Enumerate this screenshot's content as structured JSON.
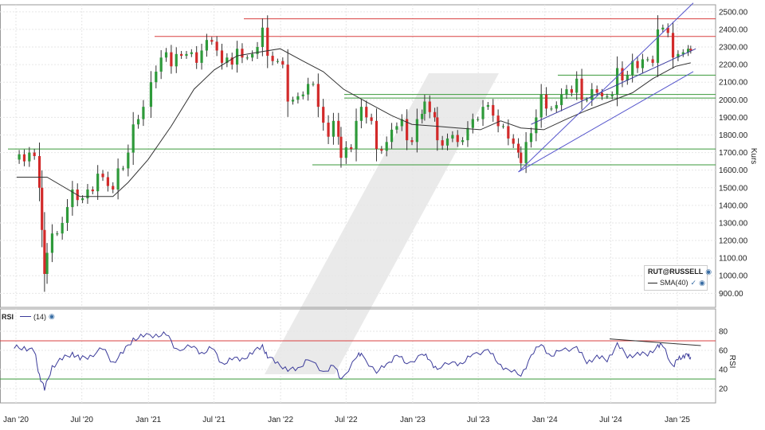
{
  "chart_data": [
    {
      "type": "candlestick",
      "title": "",
      "ylabel": "Kurs",
      "ylim": [
        820,
        2540
      ],
      "grid": true,
      "x_ticks": [
        "Jan '20",
        "Jul '20",
        "Jan '21",
        "Jul '21",
        "Jan '22",
        "Jul '22",
        "Jan '23",
        "Jul '23",
        "Jan '24",
        "Jul '24",
        "Jan '25"
      ],
      "y_ticks": [
        "900.00",
        "1000.00",
        "1100.00",
        "1200.00",
        "1300.00",
        "1400.00",
        "1500.00",
        "1600.00",
        "1700.00",
        "1800.00",
        "1900.00",
        "2000.00",
        "2100.00",
        "2200.00",
        "2300.00",
        "2400.00",
        "2500.00"
      ],
      "legend": {
        "symbol": "RUT@RUSSELL",
        "sma_label": "SMA(40)"
      },
      "close_series": [
        [
          "2019-12-27",
          1660
        ],
        [
          "2020-01-10",
          1690
        ],
        [
          "2020-01-24",
          1650
        ],
        [
          "2020-02-07",
          1700
        ],
        [
          "2020-02-21",
          1680
        ],
        [
          "2020-03-06",
          1500
        ],
        [
          "2020-03-13",
          1260
        ],
        [
          "2020-03-20",
          1010
        ],
        [
          "2020-03-27",
          1130
        ],
        [
          "2020-04-10",
          1240
        ],
        [
          "2020-04-24",
          1240
        ],
        [
          "2020-05-08",
          1300
        ],
        [
          "2020-05-22",
          1390
        ],
        [
          "2020-06-05",
          1490
        ],
        [
          "2020-06-19",
          1430
        ],
        [
          "2020-07-03",
          1440
        ],
        [
          "2020-07-17",
          1490
        ],
        [
          "2020-07-31",
          1480
        ],
        [
          "2020-08-14",
          1580
        ],
        [
          "2020-08-28",
          1560
        ],
        [
          "2020-09-11",
          1510
        ],
        [
          "2020-09-25",
          1490
        ],
        [
          "2020-10-09",
          1610
        ],
        [
          "2020-10-23",
          1610
        ],
        [
          "2020-11-06",
          1700
        ],
        [
          "2020-11-20",
          1860
        ],
        [
          "2020-12-04",
          1890
        ],
        [
          "2020-12-18",
          1960
        ],
        [
          "2021-01-08",
          2100
        ],
        [
          "2021-01-22",
          2160
        ],
        [
          "2021-02-05",
          2240
        ],
        [
          "2021-02-19",
          2270
        ],
        [
          "2021-03-05",
          2190
        ],
        [
          "2021-03-19",
          2260
        ],
        [
          "2021-04-02",
          2250
        ],
        [
          "2021-04-16",
          2260
        ],
        [
          "2021-04-30",
          2270
        ],
        [
          "2021-05-14",
          2210
        ],
        [
          "2021-05-28",
          2280
        ],
        [
          "2021-06-11",
          2340
        ],
        [
          "2021-06-25",
          2330
        ],
        [
          "2021-07-09",
          2280
        ],
        [
          "2021-07-23",
          2210
        ],
        [
          "2021-08-06",
          2240
        ],
        [
          "2021-08-20",
          2200
        ],
        [
          "2021-09-03",
          2290
        ],
        [
          "2021-09-17",
          2240
        ],
        [
          "2021-10-01",
          2240
        ],
        [
          "2021-10-15",
          2260
        ],
        [
          "2021-10-29",
          2300
        ],
        [
          "2021-11-12",
          2410
        ],
        [
          "2021-11-26",
          2250
        ],
        [
          "2021-12-10",
          2220
        ],
        [
          "2021-12-24",
          2220
        ],
        [
          "2022-01-07",
          2200
        ],
        [
          "2022-01-21",
          1990
        ],
        [
          "2022-02-04",
          2000
        ],
        [
          "2022-02-18",
          2020
        ],
        [
          "2022-03-04",
          2030
        ],
        [
          "2022-03-18",
          2090
        ],
        [
          "2022-04-01",
          2090
        ],
        [
          "2022-04-15",
          1960
        ],
        [
          "2022-04-29",
          1870
        ],
        [
          "2022-05-13",
          1790
        ],
        [
          "2022-05-27",
          1880
        ],
        [
          "2022-06-10",
          1790
        ],
        [
          "2022-06-17",
          1670
        ],
        [
          "2022-07-01",
          1730
        ],
        [
          "2022-07-15",
          1720
        ],
        [
          "2022-07-29",
          1880
        ],
        [
          "2022-08-12",
          1960
        ],
        [
          "2022-08-26",
          1900
        ],
        [
          "2022-09-09",
          1880
        ],
        [
          "2022-09-23",
          1720
        ],
        [
          "2022-10-07",
          1710
        ],
        [
          "2022-10-21",
          1760
        ],
        [
          "2022-11-04",
          1830
        ],
        [
          "2022-11-18",
          1850
        ],
        [
          "2022-12-02",
          1890
        ],
        [
          "2022-12-16",
          1770
        ],
        [
          "2022-12-30",
          1760
        ],
        [
          "2023-01-13",
          1890
        ],
        [
          "2023-01-27",
          1920
        ],
        [
          "2023-02-03",
          1990
        ],
        [
          "2023-02-17",
          1930
        ],
        [
          "2023-03-03",
          1900
        ],
        [
          "2023-03-10",
          1770
        ],
        [
          "2023-03-24",
          1740
        ],
        [
          "2023-04-07",
          1780
        ],
        [
          "2023-04-21",
          1800
        ],
        [
          "2023-05-05",
          1760
        ],
        [
          "2023-05-19",
          1770
        ],
        [
          "2023-06-02",
          1840
        ],
        [
          "2023-06-16",
          1890
        ],
        [
          "2023-06-30",
          1890
        ],
        [
          "2023-07-14",
          1960
        ],
        [
          "2023-07-28",
          1970
        ],
        [
          "2023-08-11",
          1910
        ],
        [
          "2023-08-25",
          1850
        ],
        [
          "2023-09-08",
          1850
        ],
        [
          "2023-09-22",
          1780
        ],
        [
          "2023-10-06",
          1750
        ],
        [
          "2023-10-20",
          1700
        ],
        [
          "2023-10-27",
          1640
        ],
        [
          "2023-11-10",
          1760
        ],
        [
          "2023-11-24",
          1810
        ],
        [
          "2023-12-08",
          1900
        ],
        [
          "2023-12-22",
          2030
        ],
        [
          "2024-01-05",
          1950
        ],
        [
          "2024-01-19",
          1950
        ],
        [
          "2024-02-02",
          1970
        ],
        [
          "2024-02-16",
          2030
        ],
        [
          "2024-03-01",
          2060
        ],
        [
          "2024-03-15",
          2040
        ],
        [
          "2024-03-29",
          2120
        ],
        [
          "2024-04-12",
          2000
        ],
        [
          "2024-04-26",
          2000
        ],
        [
          "2024-05-10",
          2060
        ],
        [
          "2024-05-24",
          2040
        ],
        [
          "2024-06-07",
          2020
        ],
        [
          "2024-06-21",
          2020
        ],
        [
          "2024-07-05",
          2030
        ],
        [
          "2024-07-19",
          2180
        ],
        [
          "2024-08-02",
          2110
        ],
        [
          "2024-08-16",
          2140
        ],
        [
          "2024-08-30",
          2220
        ],
        [
          "2024-09-13",
          2180
        ],
        [
          "2024-09-27",
          2230
        ],
        [
          "2024-10-11",
          2230
        ],
        [
          "2024-10-25",
          2210
        ],
        [
          "2024-11-08",
          2400
        ],
        [
          "2024-11-22",
          2410
        ],
        [
          "2024-12-06",
          2380
        ],
        [
          "2024-12-20",
          2240
        ],
        [
          "2025-01-03",
          2260
        ],
        [
          "2025-01-17",
          2270
        ],
        [
          "2025-01-31",
          2290
        ],
        [
          "2025-02-07",
          2280
        ]
      ],
      "sma_series": [
        [
          "2020-01-03",
          1560
        ],
        [
          "2020-03-27",
          1560
        ],
        [
          "2020-06-26",
          1450
        ],
        [
          "2020-09-25",
          1450
        ],
        [
          "2020-11-06",
          1530
        ],
        [
          "2020-12-31",
          1660
        ],
        [
          "2021-03-05",
          1850
        ],
        [
          "2021-05-07",
          2060
        ],
        [
          "2021-07-02",
          2170
        ],
        [
          "2021-09-03",
          2250
        ],
        [
          "2021-10-29",
          2270
        ],
        [
          "2021-12-31",
          2290
        ],
        [
          "2022-03-04",
          2220
        ],
        [
          "2022-04-29",
          2160
        ],
        [
          "2022-06-24",
          2060
        ],
        [
          "2022-09-02",
          1980
        ],
        [
          "2022-11-04",
          1910
        ],
        [
          "2022-12-30",
          1860
        ],
        [
          "2023-03-03",
          1850
        ],
        [
          "2023-05-05",
          1840
        ],
        [
          "2023-07-07",
          1830
        ],
        [
          "2023-09-01",
          1880
        ],
        [
          "2023-10-27",
          1840
        ],
        [
          "2023-12-29",
          1830
        ],
        [
          "2024-03-01",
          1890
        ],
        [
          "2024-04-26",
          1940
        ],
        [
          "2024-06-28",
          1990
        ],
        [
          "2024-08-30",
          2040
        ],
        [
          "2024-10-25",
          2120
        ],
        [
          "2024-12-27",
          2190
        ],
        [
          "2025-02-07",
          2210
        ]
      ],
      "horizontal_levels": [
        {
          "value": 2460,
          "color": "#d94040"
        },
        {
          "value": 2360,
          "color": "#d94040"
        },
        {
          "value": 2140,
          "color": "#3a9a3a"
        },
        {
          "value": 2030,
          "color": "#3a9a3a"
        },
        {
          "value": 2010,
          "color": "#3a9a3a"
        },
        {
          "value": 1720,
          "color": "#3a9a3a"
        },
        {
          "value": 1630,
          "color": "#3a9a3a"
        }
      ],
      "trend_channel": [
        {
          "from": [
            "2023-10-20",
            1590
          ],
          "to": [
            "2025-02-14",
            2550
          ]
        },
        {
          "from": [
            "2023-10-20",
            1590
          ],
          "to": [
            "2025-02-14",
            2160
          ]
        },
        {
          "from": [
            "2023-11-24",
            1860
          ],
          "to": [
            "2025-02-21",
            2290
          ]
        }
      ]
    },
    {
      "type": "line",
      "title": "",
      "ylabel": "RSI",
      "ylim": [
        5,
        90
      ],
      "y_ticks": [
        "20",
        "40",
        "60",
        "80"
      ],
      "legend": {
        "name": "RSI",
        "period": "(14)"
      },
      "levels": [
        {
          "value": 70,
          "color": "#d94040"
        },
        {
          "value": 30,
          "color": "#3a9a3a"
        }
      ],
      "series": [
        [
          "2019-12-27",
          62
        ],
        [
          "2020-01-24",
          64
        ],
        [
          "2020-02-21",
          58
        ],
        [
          "2020-03-06",
          35
        ],
        [
          "2020-03-20",
          18
        ],
        [
          "2020-04-10",
          44
        ],
        [
          "2020-05-08",
          50
        ],
        [
          "2020-06-05",
          58
        ],
        [
          "2020-06-26",
          50
        ],
        [
          "2020-07-24",
          55
        ],
        [
          "2020-08-28",
          61
        ],
        [
          "2020-09-25",
          48
        ],
        [
          "2020-10-23",
          57
        ],
        [
          "2020-11-20",
          73
        ],
        [
          "2020-12-18",
          74
        ],
        [
          "2021-01-22",
          77
        ],
        [
          "2021-02-19",
          76
        ],
        [
          "2021-03-19",
          62
        ],
        [
          "2021-04-30",
          63
        ],
        [
          "2021-05-28",
          58
        ],
        [
          "2021-06-25",
          62
        ],
        [
          "2021-07-23",
          47
        ],
        [
          "2021-08-20",
          50
        ],
        [
          "2021-09-17",
          52
        ],
        [
          "2021-10-15",
          56
        ],
        [
          "2021-11-12",
          66
        ],
        [
          "2021-11-26",
          52
        ],
        [
          "2021-12-24",
          48
        ],
        [
          "2022-01-21",
          38
        ],
        [
          "2022-02-18",
          42
        ],
        [
          "2022-03-18",
          50
        ],
        [
          "2022-04-29",
          38
        ],
        [
          "2022-05-27",
          44
        ],
        [
          "2022-06-17",
          30
        ],
        [
          "2022-07-29",
          52
        ],
        [
          "2022-08-12",
          57
        ],
        [
          "2022-09-23",
          36
        ],
        [
          "2022-10-21",
          46
        ],
        [
          "2022-11-18",
          55
        ],
        [
          "2022-12-16",
          46
        ],
        [
          "2023-01-27",
          56
        ],
        [
          "2023-02-17",
          50
        ],
        [
          "2023-03-10",
          40
        ],
        [
          "2023-04-21",
          48
        ],
        [
          "2023-05-19",
          46
        ],
        [
          "2023-06-16",
          56
        ],
        [
          "2023-07-28",
          61
        ],
        [
          "2023-08-25",
          46
        ],
        [
          "2023-09-22",
          40
        ],
        [
          "2023-10-27",
          33
        ],
        [
          "2023-11-24",
          55
        ],
        [
          "2023-12-22",
          66
        ],
        [
          "2024-01-19",
          54
        ],
        [
          "2024-02-16",
          60
        ],
        [
          "2024-03-29",
          64
        ],
        [
          "2024-04-26",
          46
        ],
        [
          "2024-05-24",
          55
        ],
        [
          "2024-06-21",
          48
        ],
        [
          "2024-07-19",
          68
        ],
        [
          "2024-08-16",
          52
        ],
        [
          "2024-09-13",
          58
        ],
        [
          "2024-10-11",
          54
        ],
        [
          "2024-11-08",
          66
        ],
        [
          "2024-11-22",
          64
        ],
        [
          "2024-12-20",
          44
        ],
        [
          "2025-01-03",
          50
        ],
        [
          "2025-01-17",
          55
        ],
        [
          "2025-01-31",
          54
        ],
        [
          "2025-02-07",
          53
        ]
      ],
      "divergence_line": {
        "from": [
          "2024-06-28",
          72
        ],
        "to": [
          "2025-03-07",
          65
        ]
      }
    }
  ]
}
